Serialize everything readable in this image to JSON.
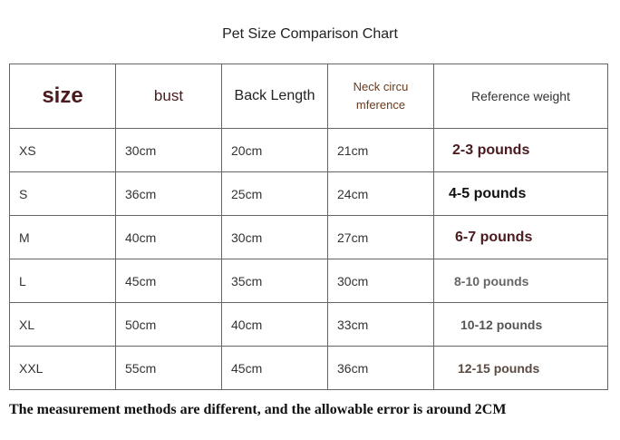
{
  "title": "Pet Size Comparison Chart",
  "headers": [
    "size",
    "bust",
    "Back Length",
    "Neck circu mference",
    "Reference weight"
  ],
  "rows": [
    [
      "XS",
      "30cm",
      "20cm",
      "21cm",
      "2-3 pounds"
    ],
    [
      "S",
      "36cm",
      "25cm",
      "24cm",
      "4-5 pounds"
    ],
    [
      "M",
      "40cm",
      "30cm",
      "27cm",
      "6-7 pounds"
    ],
    [
      "L",
      "45cm",
      "35cm",
      "30cm",
      "8-10 pounds"
    ],
    [
      "XL",
      "50cm",
      "40cm",
      "33cm",
      "10-12 pounds"
    ],
    [
      "XXL",
      "55cm",
      "45cm",
      "36cm",
      "12-15 pounds"
    ]
  ],
  "footer": "The measurement methods are different, and the allowable error is around 2CM"
}
